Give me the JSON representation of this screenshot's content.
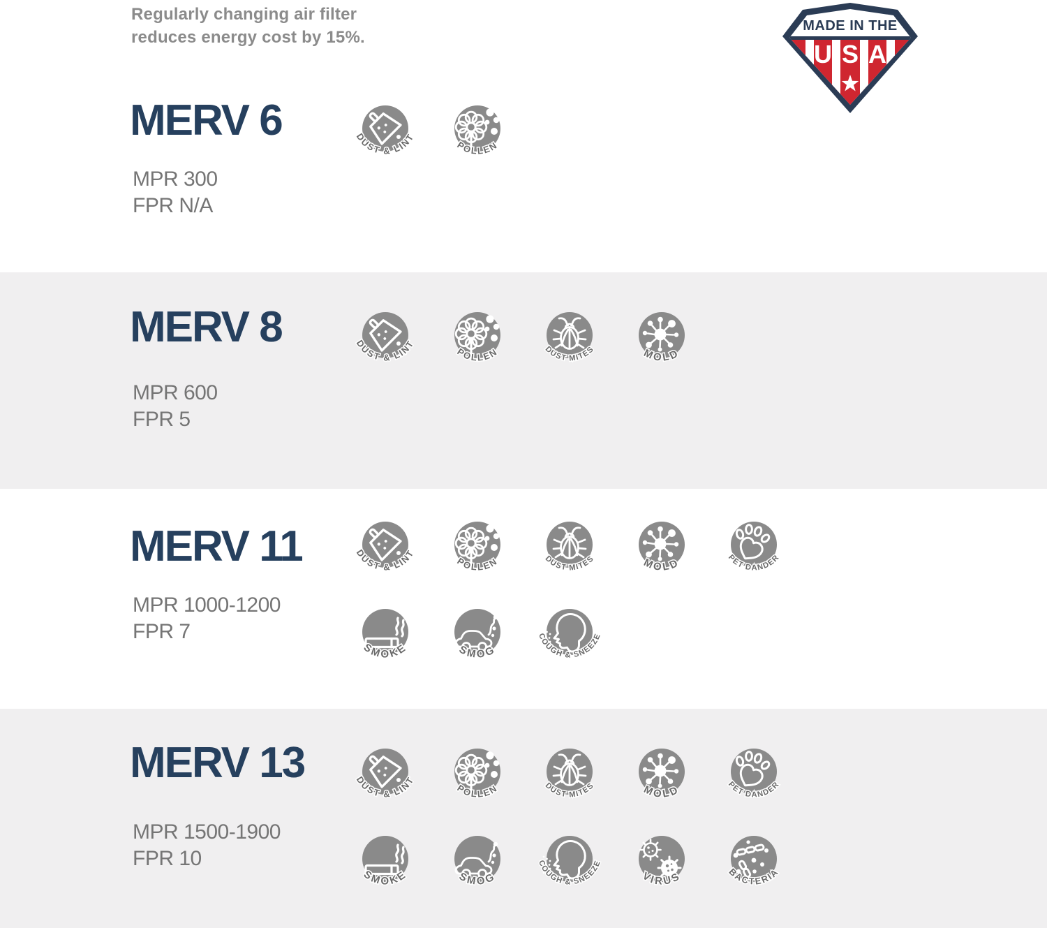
{
  "note": {
    "line1": "Regularly changing air filter",
    "line2": "reduces energy cost by 15%."
  },
  "badge": {
    "top_text": "MADE IN THE",
    "letters": [
      "U",
      "S",
      "A"
    ]
  },
  "sections": [
    {
      "id": "merv-6",
      "title": "MERV 6",
      "mpr": "MPR 300",
      "fpr": "FPR N/A",
      "icons": [
        {
          "name": "dust-lint",
          "label": "DUST & LINT"
        },
        {
          "name": "pollen",
          "label": "POLLEN"
        }
      ]
    },
    {
      "id": "merv-8",
      "title": "MERV 8",
      "mpr": "MPR 600",
      "fpr": "FPR 5",
      "icons": [
        {
          "name": "dust-lint",
          "label": "DUST & LINT"
        },
        {
          "name": "pollen",
          "label": "POLLEN"
        },
        {
          "name": "dust-mites",
          "label": "DUST MITES"
        },
        {
          "name": "mold",
          "label": "MOLD"
        }
      ]
    },
    {
      "id": "merv-11",
      "title": "MERV 11",
      "mpr": "MPR 1000-1200",
      "fpr": "FPR 7",
      "icons": [
        {
          "name": "dust-lint",
          "label": "DUST & LINT"
        },
        {
          "name": "pollen",
          "label": "POLLEN"
        },
        {
          "name": "dust-mites",
          "label": "DUST MITES"
        },
        {
          "name": "mold",
          "label": "MOLD"
        },
        {
          "name": "pet-dander",
          "label": "PET DANDER"
        },
        {
          "name": "smoke",
          "label": "SMOKE"
        },
        {
          "name": "smog",
          "label": "SMOG"
        },
        {
          "name": "cough-sneeze",
          "label": "COUGH & SNEEZE"
        }
      ]
    },
    {
      "id": "merv-13",
      "title": "MERV 13",
      "mpr": "MPR 1500-1900",
      "fpr": "FPR 10",
      "icons": [
        {
          "name": "dust-lint",
          "label": "DUST & LINT"
        },
        {
          "name": "pollen",
          "label": "POLLEN"
        },
        {
          "name": "dust-mites",
          "label": "DUST MITES"
        },
        {
          "name": "mold",
          "label": "MOLD"
        },
        {
          "name": "pet-dander",
          "label": "PET DANDER"
        },
        {
          "name": "smoke",
          "label": "SMOKE"
        },
        {
          "name": "smog",
          "label": "SMOG"
        },
        {
          "name": "cough-sneeze",
          "label": "COUGH & SNEEZE"
        },
        {
          "name": "virus",
          "label": "VIRUS"
        },
        {
          "name": "bacteria",
          "label": "BACTERIA"
        }
      ]
    }
  ],
  "colors": {
    "heading_navy": "#26405e",
    "badge_navy": "#2b3c55",
    "badge_red": "#cf2630",
    "icon_circle_gray": "#8a8a8a",
    "icon_label_gray": "#696969",
    "band_gray": "#f0eff0",
    "spec_text_gray": "#757575",
    "note_text_gray": "#8b8b8b"
  }
}
